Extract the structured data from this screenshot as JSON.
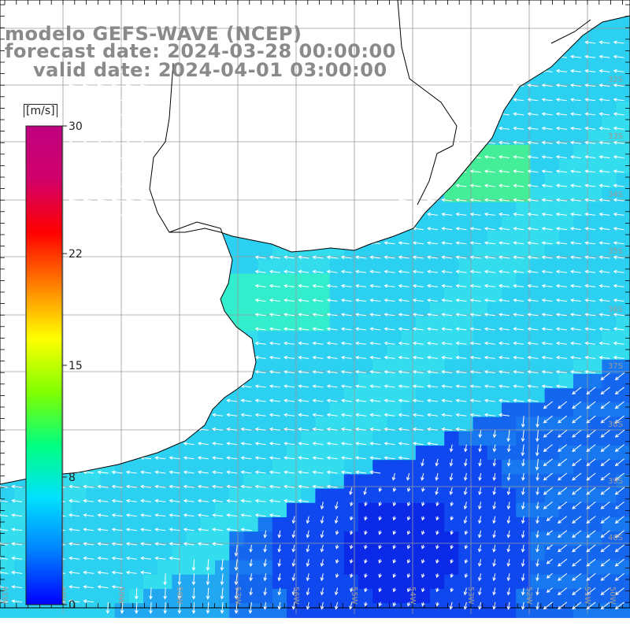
{
  "title_lines": [
    "modelo GEFS-WAVE (NCEP)",
    "forecast date: 2024-03-28 00:00:00",
    "valid date: 2024-04-01 03:00:00"
  ],
  "colorbar": {
    "unit": "[m/s]",
    "ticks": [
      "30",
      "22",
      "15",
      "8",
      "0"
    ],
    "tick_values": [
      30,
      22,
      15,
      8,
      0
    ],
    "colors": [
      "#0000ff",
      "#0080ff",
      "#00e0ff",
      "#00ff80",
      "#80ff00",
      "#ffff00",
      "#ff8000",
      "#ff0000",
      "#d0006a",
      "#c00080"
    ]
  },
  "map": {
    "lon_labels": [
      "61W",
      "60W",
      "59W",
      "58W",
      "57W",
      "56W",
      "55W",
      "54W",
      "53W",
      "52W",
      "51W",
      "50W"
    ],
    "lat_labels": [
      "32S",
      "33S",
      "34S",
      "35S",
      "36S",
      "37S",
      "38S",
      "39S",
      "40S"
    ],
    "colors": {
      "land": "#ffffff",
      "coast": "#000000",
      "grid": "#9a9a9a",
      "arrow": "#ffffff",
      "strong_field": "#33ddee",
      "weak_field": "#1060ee"
    }
  }
}
